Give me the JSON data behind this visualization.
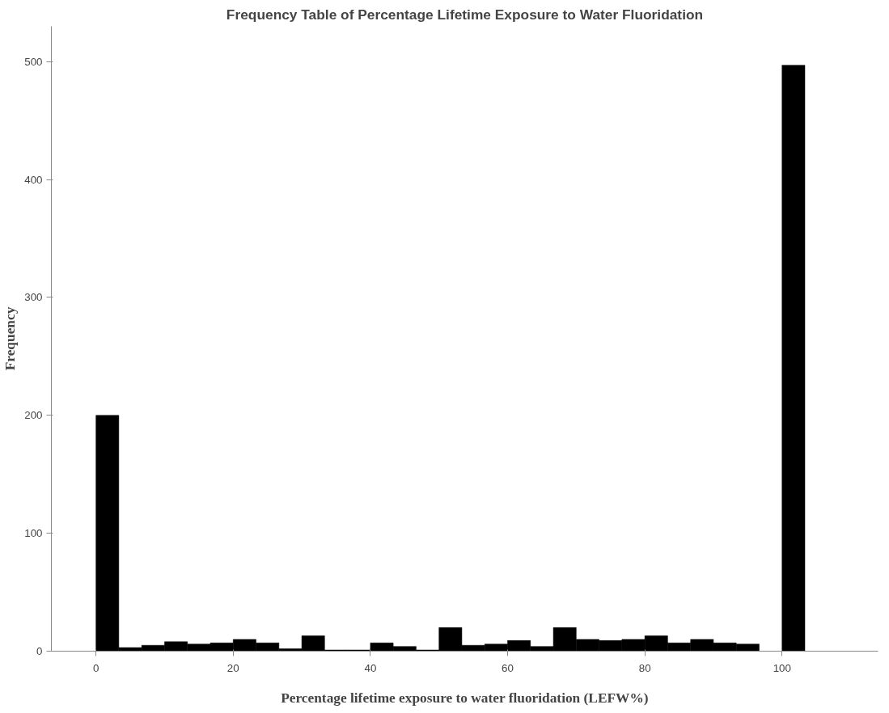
{
  "chart_data": {
    "type": "histogram",
    "title": "Frequency Table of Percentage Lifetime Exposure to Water Fluoridation",
    "xlabel": "Percentage lifetime exposure to water fluoridation (LEFW%)",
    "ylabel": "Frequency",
    "bins": [
      0,
      3.33,
      6.67,
      10,
      13.33,
      16.67,
      20,
      23.33,
      26.67,
      30,
      33.33,
      36.67,
      40,
      43.33,
      46.67,
      50,
      53.33,
      56.67,
      60,
      63.33,
      66.67,
      70,
      73.33,
      76.67,
      80,
      83.33,
      86.67,
      90,
      93.33,
      96.67,
      100,
      103.33
    ],
    "values": [
      200,
      3,
      5,
      8,
      6,
      7,
      10,
      7,
      2,
      13,
      1,
      1,
      7,
      4,
      1,
      20,
      5,
      6,
      9,
      4,
      20,
      10,
      9,
      10,
      13,
      7,
      10,
      7,
      6,
      0,
      497
    ],
    "color": "#000000",
    "xlim": [
      -6.5,
      114
    ],
    "xticks": [
      0,
      20,
      40,
      60,
      80,
      100
    ],
    "ylim": [
      0,
      530
    ],
    "yticks": [
      0,
      100,
      200,
      300,
      400,
      500
    ],
    "grid": false
  }
}
